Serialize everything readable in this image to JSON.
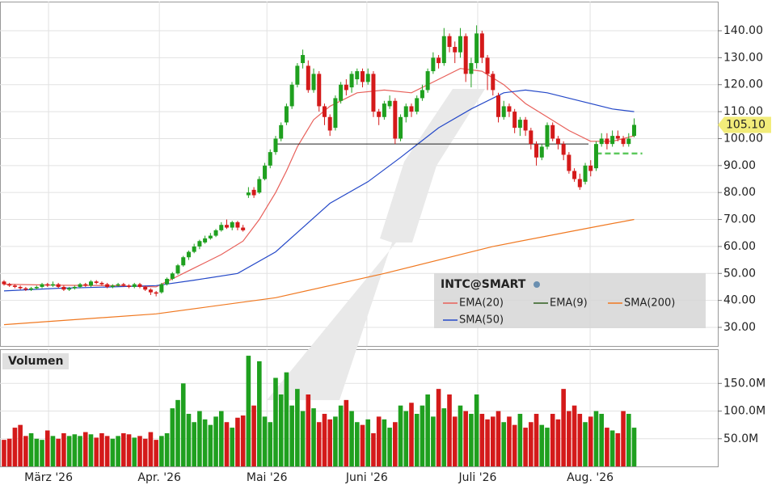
{
  "chart_data": {
    "type": "candlestick",
    "title": "INTC@SMART",
    "volume_title": "Volumen",
    "last_label": "105.10",
    "xlim": [
      -0.74,
      131.4
    ],
    "xticks": [
      {
        "value": 8.2,
        "label": "März '26"
      },
      {
        "value": 28.6,
        "label": "Apr. '26"
      },
      {
        "value": 48.4,
        "label": "Mai '26"
      },
      {
        "value": 66.8,
        "label": "Juni '26"
      },
      {
        "value": 87.2,
        "label": "Juli '26"
      },
      {
        "value": 107.9,
        "label": "Aug. '26"
      }
    ],
    "ylim": [
      23.1,
      150.8
    ],
    "yticks": [
      {
        "value": 30,
        "label": "30.00"
      },
      {
        "value": 40,
        "label": "40.00"
      },
      {
        "value": 50,
        "label": "50.00"
      },
      {
        "value": 60,
        "label": "60.00"
      },
      {
        "value": 70,
        "label": "70.00"
      },
      {
        "value": 80,
        "label": "80.00"
      },
      {
        "value": 90,
        "label": "90.00"
      },
      {
        "value": 100,
        "label": "100.00"
      },
      {
        "value": 110,
        "label": "110.00"
      },
      {
        "value": 120,
        "label": "120.00"
      },
      {
        "value": 130,
        "label": "130.00"
      },
      {
        "value": 140,
        "label": "140.00"
      }
    ],
    "vlim": [
      0,
      211.8
    ],
    "vticks": [
      {
        "value": 50,
        "label": "50.0M"
      },
      {
        "value": 100,
        "label": "100.0M"
      },
      {
        "value": 150,
        "label": "150.0M"
      }
    ],
    "up_color": "#1fa01f",
    "down_color": "#d41a1a",
    "grid": true,
    "ohlc": [
      [
        47,
        47.5,
        45.5,
        46
      ],
      [
        46,
        46.5,
        45,
        45.5
      ],
      [
        45.5,
        46,
        44.5,
        45
      ],
      [
        45,
        45.5,
        44,
        44.5
      ],
      [
        44.5,
        45,
        43.5,
        44
      ],
      [
        44,
        45,
        43.5,
        44.5
      ],
      [
        44.5,
        45.5,
        44,
        45
      ],
      [
        45,
        46.5,
        44.5,
        46
      ],
      [
        46,
        46.5,
        45,
        45.5
      ],
      [
        45.5,
        47,
        45,
        46
      ],
      [
        46,
        46.5,
        44.5,
        45
      ],
      [
        45,
        45.5,
        43.5,
        44
      ],
      [
        44,
        45,
        43.5,
        44.5
      ],
      [
        44.5,
        45.5,
        44,
        45
      ],
      [
        45,
        46.5,
        44.5,
        46
      ],
      [
        46,
        46.5,
        45,
        45.5
      ],
      [
        45.5,
        47.5,
        45,
        47
      ],
      [
        47,
        47.5,
        46,
        46.5
      ],
      [
        46.5,
        47,
        45.5,
        46
      ],
      [
        46,
        46.5,
        44.5,
        45
      ],
      [
        45,
        46,
        44.5,
        45.5
      ],
      [
        45.5,
        46.5,
        45,
        46
      ],
      [
        46,
        46.5,
        45,
        45.5
      ],
      [
        45.5,
        46,
        44.5,
        45
      ],
      [
        45,
        46.5,
        44.5,
        46
      ],
      [
        46,
        46.5,
        44.5,
        45
      ],
      [
        45,
        45.5,
        43.5,
        44
      ],
      [
        44,
        44.5,
        42,
        43
      ],
      [
        43,
        43.5,
        41.5,
        42.5
      ],
      [
        43,
        46.5,
        42.5,
        46
      ],
      [
        46,
        48.5,
        45.5,
        48
      ],
      [
        48,
        50.5,
        47.5,
        50
      ],
      [
        50,
        53.5,
        49.5,
        53
      ],
      [
        53,
        56.5,
        52.5,
        56
      ],
      [
        56,
        58.5,
        55,
        58
      ],
      [
        58,
        61,
        57.5,
        60
      ],
      [
        60,
        62.5,
        59,
        62
      ],
      [
        61.5,
        64,
        61,
        63
      ],
      [
        63,
        65,
        62.5,
        64
      ],
      [
        64,
        66.5,
        63.5,
        66
      ],
      [
        66,
        69,
        65.5,
        68
      ],
      [
        68,
        70,
        66.5,
        67
      ],
      [
        67,
        69.5,
        66,
        69
      ],
      [
        69,
        69.5,
        66,
        67
      ],
      [
        67,
        68,
        65.5,
        66
      ],
      [
        79,
        82,
        78,
        80
      ],
      [
        81,
        82,
        78,
        79
      ],
      [
        80,
        86,
        79.5,
        85
      ],
      [
        85,
        91,
        84.5,
        90
      ],
      [
        90,
        96,
        89,
        95
      ],
      [
        95,
        101,
        94,
        100
      ],
      [
        100,
        106,
        99,
        105
      ],
      [
        106,
        113,
        105,
        112
      ],
      [
        112,
        121,
        111,
        120
      ],
      [
        120,
        128,
        119,
        127
      ],
      [
        128,
        133,
        126,
        131
      ],
      [
        127,
        129,
        117,
        118
      ],
      [
        118,
        126,
        117,
        124
      ],
      [
        124,
        125,
        110,
        112
      ],
      [
        112,
        113,
        105,
        108
      ],
      [
        108,
        109,
        101,
        103
      ],
      [
        104,
        116,
        103,
        115
      ],
      [
        114,
        121,
        113,
        120
      ],
      [
        120,
        122,
        116,
        118
      ],
      [
        119,
        125,
        117,
        124
      ],
      [
        122,
        126,
        120,
        125
      ],
      [
        125,
        126,
        119,
        121
      ],
      [
        121,
        126,
        120,
        124
      ],
      [
        124,
        125,
        108,
        110
      ],
      [
        110,
        111,
        105,
        108
      ],
      [
        108,
        114,
        107,
        113
      ],
      [
        112,
        116,
        111,
        114
      ],
      [
        114,
        115,
        98,
        100
      ],
      [
        100,
        109,
        99,
        108
      ],
      [
        108,
        113,
        106,
        112
      ],
      [
        112,
        113,
        108,
        110
      ],
      [
        110,
        116,
        109,
        115
      ],
      [
        115,
        120,
        114,
        118
      ],
      [
        118,
        126,
        117,
        125
      ],
      [
        125,
        132,
        124,
        130
      ],
      [
        130,
        131,
        126,
        128
      ],
      [
        128,
        141,
        127,
        138
      ],
      [
        138,
        139,
        132,
        134
      ],
      [
        134,
        136,
        128,
        132
      ],
      [
        132,
        141,
        130,
        138
      ],
      [
        138,
        139,
        121,
        124
      ],
      [
        124,
        130,
        119,
        128
      ],
      [
        128,
        142,
        126,
        139
      ],
      [
        139,
        140,
        128,
        130
      ],
      [
        130,
        131,
        118,
        124
      ],
      [
        124,
        125,
        116,
        118
      ],
      [
        116,
        117,
        106,
        108
      ],
      [
        108,
        114,
        107,
        112
      ],
      [
        112,
        113,
        108,
        110
      ],
      [
        110,
        111,
        102,
        104
      ],
      [
        104,
        108,
        101,
        107
      ],
      [
        107,
        108,
        101,
        103
      ],
      [
        103,
        104,
        96,
        98
      ],
      [
        98,
        99,
        90,
        93
      ],
      [
        93,
        98,
        92,
        97
      ],
      [
        97,
        106,
        96,
        105
      ],
      [
        105,
        106,
        99,
        100
      ],
      [
        100,
        101,
        96,
        98
      ],
      [
        98,
        99,
        92,
        94
      ],
      [
        94,
        95,
        87,
        88
      ],
      [
        88,
        89,
        84,
        85
      ],
      [
        85,
        87,
        81,
        82
      ],
      [
        84,
        91,
        83,
        90
      ],
      [
        90,
        92,
        86,
        88
      ],
      [
        89,
        99,
        88,
        98
      ],
      [
        98,
        102,
        97,
        100
      ],
      [
        100,
        102,
        96,
        98
      ],
      [
        98,
        103,
        97,
        101
      ],
      [
        101,
        103,
        99,
        100
      ],
      [
        100,
        101,
        97,
        98
      ],
      [
        98,
        102,
        97,
        100
      ],
      [
        101,
        107.5,
        100.5,
        105.1
      ]
    ],
    "volume": [
      48,
      50,
      70,
      75,
      55,
      60,
      50,
      48,
      65,
      55,
      50,
      60,
      55,
      58,
      55,
      62,
      58,
      52,
      60,
      55,
      50,
      55,
      60,
      58,
      52,
      55,
      50,
      62,
      48,
      55,
      60,
      105,
      120,
      150,
      95,
      80,
      100,
      85,
      75,
      90,
      100,
      80,
      70,
      88,
      92,
      200,
      110,
      190,
      90,
      80,
      160,
      130,
      170,
      110,
      140,
      100,
      130,
      105,
      80,
      95,
      85,
      90,
      110,
      120,
      100,
      80,
      75,
      85,
      60,
      90,
      85,
      70,
      80,
      110,
      100,
      115,
      95,
      110,
      130,
      90,
      140,
      105,
      130,
      90,
      110,
      100,
      95,
      130,
      95,
      85,
      90,
      100,
      80,
      90,
      75,
      95,
      70,
      80,
      95,
      75,
      70,
      95,
      85,
      140,
      100,
      110,
      95,
      80,
      90,
      100,
      95,
      70,
      65,
      60,
      100,
      95,
      70
    ],
    "lines": [
      {
        "name": "EMA(20)",
        "color": "#e8605a",
        "x": [
          0,
          10,
          20,
          28,
          35,
          40,
          44,
          47,
          50,
          52,
          54,
          57,
          60,
          65,
          70,
          75,
          80,
          84,
          88,
          92,
          96,
          100,
          104,
          108,
          112,
          116
        ],
        "values": [
          46,
          45.6,
          45.5,
          45,
          52,
          57,
          62,
          70,
          80,
          88,
          97,
          107,
          112,
          117,
          118,
          117,
          122,
          126,
          125,
          120,
          113,
          108,
          103,
          99,
          99,
          101
        ]
      },
      {
        "name": "EMA(9)",
        "color": "#2f5f1f",
        "x": [],
        "values": []
      },
      {
        "name": "SMA(200)",
        "color": "#f07820",
        "x": [
          0,
          28,
          50,
          70,
          90,
          108,
          116
        ],
        "values": [
          31,
          35,
          41,
          50,
          60,
          67,
          70
        ]
      },
      {
        "name": "SMA(50)",
        "color": "#2448c8",
        "x": [
          0,
          10,
          20,
          28,
          35,
          43,
          50,
          55,
          60,
          67,
          73,
          80,
          86,
          92,
          96,
          100,
          106,
          112,
          116
        ],
        "values": [
          43.5,
          44.5,
          45,
          45.5,
          47.5,
          50,
          58,
          67,
          76,
          84,
          93,
          104,
          111,
          117,
          118,
          117,
          114,
          111,
          110
        ]
      }
    ],
    "levels": [
      {
        "value": 98,
        "x": [
          50.3,
          107.6
        ],
        "color": "#222222",
        "dashed": false
      },
      {
        "value": 94.5,
        "x": [
          109,
          117.5
        ],
        "color": "#5cc85c",
        "dashed": true
      }
    ]
  }
}
